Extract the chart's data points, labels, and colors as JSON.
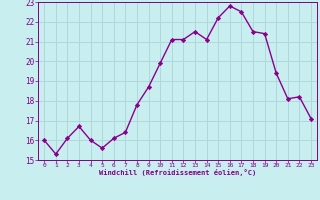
{
  "x": [
    0,
    1,
    2,
    3,
    4,
    5,
    6,
    7,
    8,
    9,
    10,
    11,
    12,
    13,
    14,
    15,
    16,
    17,
    18,
    19,
    20,
    21,
    22,
    23
  ],
  "y": [
    16.0,
    15.3,
    16.1,
    16.7,
    16.0,
    15.6,
    16.1,
    16.4,
    17.8,
    18.7,
    19.9,
    21.1,
    21.1,
    21.5,
    21.1,
    22.2,
    22.8,
    22.5,
    21.5,
    21.4,
    19.4,
    18.1,
    18.2,
    17.1
  ],
  "line_color": "#8b008b",
  "marker": "D",
  "markersize": 2.2,
  "linewidth": 1.0,
  "bg_color": "#c8eef0",
  "grid_color": "#b0d8dc",
  "xlabel": "Windchill (Refroidissement éolien,°C)",
  "tick_color": "#800080",
  "xlim": [
    -0.5,
    23.5
  ],
  "ylim": [
    15,
    23
  ],
  "yticks": [
    15,
    16,
    17,
    18,
    19,
    20,
    21,
    22,
    23
  ],
  "xticks": [
    0,
    1,
    2,
    3,
    4,
    5,
    6,
    7,
    8,
    9,
    10,
    11,
    12,
    13,
    14,
    15,
    16,
    17,
    18,
    19,
    20,
    21,
    22,
    23
  ]
}
